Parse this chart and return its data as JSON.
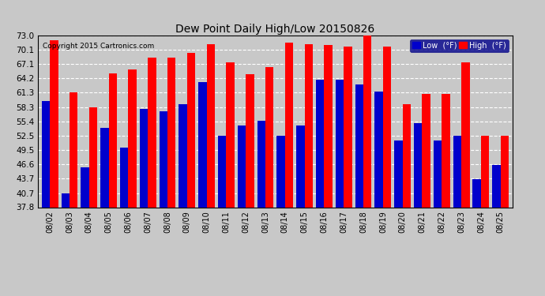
{
  "title": "Dew Point Daily High/Low 20150826",
  "copyright": "Copyright 2015 Cartronics.com",
  "dates": [
    "08/02",
    "08/03",
    "08/04",
    "08/05",
    "08/06",
    "08/07",
    "08/08",
    "08/09",
    "08/10",
    "08/11",
    "08/12",
    "08/13",
    "08/14",
    "08/15",
    "08/16",
    "08/17",
    "08/18",
    "08/19",
    "08/20",
    "08/21",
    "08/22",
    "08/23",
    "08/24",
    "08/25"
  ],
  "high": [
    72.0,
    61.3,
    58.3,
    65.2,
    66.0,
    68.5,
    68.5,
    69.5,
    71.2,
    67.5,
    65.0,
    66.5,
    71.5,
    71.2,
    71.0,
    70.8,
    73.5,
    70.8,
    59.0,
    61.0,
    61.0,
    67.5,
    52.5,
    52.5
  ],
  "low": [
    59.5,
    40.7,
    46.0,
    54.0,
    50.0,
    58.0,
    57.5,
    59.0,
    63.5,
    52.5,
    54.5,
    55.5,
    52.5,
    54.5,
    64.0,
    64.0,
    63.0,
    61.5,
    51.5,
    55.0,
    51.5,
    52.5,
    43.5,
    46.5
  ],
  "ylim_min": 37.8,
  "ylim_max": 73.0,
  "yticks": [
    37.8,
    40.7,
    43.7,
    46.6,
    49.5,
    52.5,
    55.4,
    58.3,
    61.3,
    64.2,
    67.1,
    70.1,
    73.0
  ],
  "high_color": "#ff0000",
  "low_color": "#0000cc",
  "bg_color": "#c8c8c8",
  "bar_width": 0.42,
  "legend_low_label": "Low  (°F)",
  "legend_high_label": "High  (°F)"
}
